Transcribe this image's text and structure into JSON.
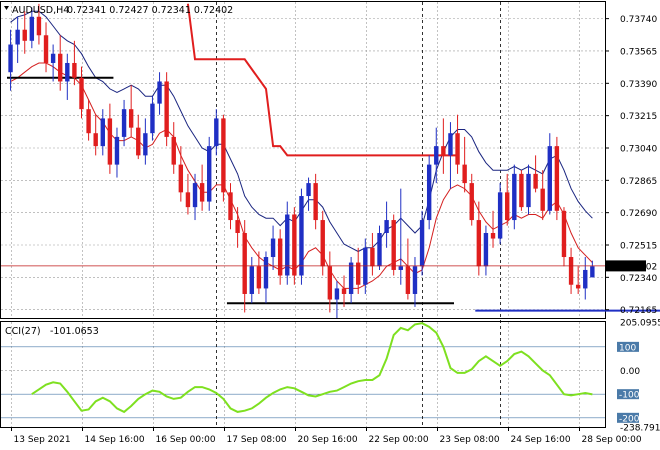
{
  "header": {
    "symbol": "AUDUSD,H4",
    "quote_values": "0.72341 0.72427 0.72341 0.72402"
  },
  "cci_header": {
    "name": "CCI(27)",
    "value": "-101.0653"
  },
  "colors": {
    "bull": "#1f2fc4",
    "bear": "#e01e1e",
    "upper_band": "#1a2580",
    "lower_band": "#d42020",
    "stop_line": "#e01e1e",
    "support": "#000000",
    "support_blue": "#1f2fc4",
    "cci_line": "#7ee020",
    "grid": "#9a9a9a",
    "price_tag_bg": "#000000",
    "price_tag_text": "#ffffff"
  },
  "chart_data": [
    {
      "type": "candlestick",
      "title": "AUDUSD,H4",
      "y_ticks": [
        "0.73740",
        "0.73565",
        "0.73390",
        "0.73215",
        "0.73040",
        "0.72865",
        "0.72690",
        "0.72515",
        "0.72340",
        "0.72165"
      ],
      "ylim": [
        0.7212,
        0.7383
      ],
      "current_price": "0.72402",
      "x_ticks": [
        "13 Sep 2021",
        "14 Sep 16:00",
        "16 Sep 00:00",
        "17 Sep 08:00",
        "20 Sep 16:00",
        "22 Sep 00:00",
        "23 Sep 08:00",
        "24 Sep 16:00",
        "28 Sep 00:00"
      ],
      "candles": [
        {
          "o": 0.7345,
          "h": 0.7368,
          "l": 0.7335,
          "c": 0.736
        },
        {
          "o": 0.736,
          "h": 0.7375,
          "l": 0.735,
          "c": 0.7368
        },
        {
          "o": 0.7368,
          "h": 0.7378,
          "l": 0.7355,
          "c": 0.7362
        },
        {
          "o": 0.7362,
          "h": 0.738,
          "l": 0.7358,
          "c": 0.7375
        },
        {
          "o": 0.7375,
          "h": 0.7382,
          "l": 0.736,
          "c": 0.7365
        },
        {
          "o": 0.7365,
          "h": 0.7372,
          "l": 0.7345,
          "c": 0.735
        },
        {
          "o": 0.735,
          "h": 0.736,
          "l": 0.734,
          "c": 0.7355
        },
        {
          "o": 0.7355,
          "h": 0.7365,
          "l": 0.7335,
          "c": 0.734
        },
        {
          "o": 0.734,
          "h": 0.7355,
          "l": 0.733,
          "c": 0.735
        },
        {
          "o": 0.735,
          "h": 0.7362,
          "l": 0.7338,
          "c": 0.7342
        },
        {
          "o": 0.7342,
          "h": 0.7348,
          "l": 0.732,
          "c": 0.7325
        },
        {
          "o": 0.7325,
          "h": 0.733,
          "l": 0.7308,
          "c": 0.7312
        },
        {
          "o": 0.7312,
          "h": 0.7322,
          "l": 0.73,
          "c": 0.7305
        },
        {
          "o": 0.7305,
          "h": 0.7325,
          "l": 0.73,
          "c": 0.732
        },
        {
          "o": 0.732,
          "h": 0.7328,
          "l": 0.729,
          "c": 0.7295
        },
        {
          "o": 0.7295,
          "h": 0.7315,
          "l": 0.7288,
          "c": 0.731
        },
        {
          "o": 0.731,
          "h": 0.733,
          "l": 0.7305,
          "c": 0.7325
        },
        {
          "o": 0.7325,
          "h": 0.7338,
          "l": 0.731,
          "c": 0.7315
        },
        {
          "o": 0.7315,
          "h": 0.7322,
          "l": 0.7298,
          "c": 0.73
        },
        {
          "o": 0.73,
          "h": 0.732,
          "l": 0.7295,
          "c": 0.7312
        },
        {
          "o": 0.7312,
          "h": 0.7332,
          "l": 0.7308,
          "c": 0.7328
        },
        {
          "o": 0.7328,
          "h": 0.7345,
          "l": 0.7322,
          "c": 0.734
        },
        {
          "o": 0.734,
          "h": 0.7345,
          "l": 0.7305,
          "c": 0.731
        },
        {
          "o": 0.731,
          "h": 0.7318,
          "l": 0.729,
          "c": 0.7295
        },
        {
          "o": 0.7295,
          "h": 0.7305,
          "l": 0.7275,
          "c": 0.728
        },
        {
          "o": 0.728,
          "h": 0.729,
          "l": 0.7268,
          "c": 0.7272
        },
        {
          "o": 0.7272,
          "h": 0.729,
          "l": 0.7265,
          "c": 0.7285
        },
        {
          "o": 0.7285,
          "h": 0.7295,
          "l": 0.727,
          "c": 0.7275
        },
        {
          "o": 0.7275,
          "h": 0.731,
          "l": 0.727,
          "c": 0.7305
        },
        {
          "o": 0.7305,
          "h": 0.7325,
          "l": 0.73,
          "c": 0.732
        },
        {
          "o": 0.732,
          "h": 0.7322,
          "l": 0.7275,
          "c": 0.728
        },
        {
          "o": 0.728,
          "h": 0.7285,
          "l": 0.726,
          "c": 0.7265
        },
        {
          "o": 0.7265,
          "h": 0.7272,
          "l": 0.725,
          "c": 0.7258
        },
        {
          "o": 0.7258,
          "h": 0.7265,
          "l": 0.7215,
          "c": 0.7225
        },
        {
          "o": 0.7225,
          "h": 0.7245,
          "l": 0.722,
          "c": 0.724
        },
        {
          "o": 0.724,
          "h": 0.7248,
          "l": 0.7225,
          "c": 0.7228
        },
        {
          "o": 0.7228,
          "h": 0.7248,
          "l": 0.722,
          "c": 0.7245
        },
        {
          "o": 0.7245,
          "h": 0.7262,
          "l": 0.7238,
          "c": 0.7255
        },
        {
          "o": 0.7255,
          "h": 0.726,
          "l": 0.723,
          "c": 0.7235
        },
        {
          "o": 0.7235,
          "h": 0.7275,
          "l": 0.723,
          "c": 0.7268
        },
        {
          "o": 0.7268,
          "h": 0.7272,
          "l": 0.723,
          "c": 0.7235
        },
        {
          "o": 0.7235,
          "h": 0.7282,
          "l": 0.723,
          "c": 0.7278
        },
        {
          "o": 0.7278,
          "h": 0.7288,
          "l": 0.727,
          "c": 0.7285
        },
        {
          "o": 0.7285,
          "h": 0.729,
          "l": 0.726,
          "c": 0.7265
        },
        {
          "o": 0.7265,
          "h": 0.727,
          "l": 0.7235,
          "c": 0.724
        },
        {
          "o": 0.724,
          "h": 0.7248,
          "l": 0.7215,
          "c": 0.7222
        },
        {
          "o": 0.7222,
          "h": 0.7232,
          "l": 0.7212,
          "c": 0.7228
        },
        {
          "o": 0.7228,
          "h": 0.7235,
          "l": 0.7218,
          "c": 0.7225
        },
        {
          "o": 0.7225,
          "h": 0.7245,
          "l": 0.722,
          "c": 0.7242
        },
        {
          "o": 0.7242,
          "h": 0.725,
          "l": 0.7225,
          "c": 0.723
        },
        {
          "o": 0.723,
          "h": 0.7255,
          "l": 0.7225,
          "c": 0.725
        },
        {
          "o": 0.725,
          "h": 0.7258,
          "l": 0.7235,
          "c": 0.724
        },
        {
          "o": 0.724,
          "h": 0.7262,
          "l": 0.7238,
          "c": 0.7258
        },
        {
          "o": 0.7258,
          "h": 0.7275,
          "l": 0.725,
          "c": 0.7265
        },
        {
          "o": 0.7265,
          "h": 0.7268,
          "l": 0.7235,
          "c": 0.7238
        },
        {
          "o": 0.7238,
          "h": 0.7282,
          "l": 0.723,
          "c": 0.724
        },
        {
          "o": 0.724,
          "h": 0.7255,
          "l": 0.7222,
          "c": 0.7225
        },
        {
          "o": 0.7225,
          "h": 0.7245,
          "l": 0.7218,
          "c": 0.724
        },
        {
          "o": 0.724,
          "h": 0.727,
          "l": 0.7235,
          "c": 0.7265
        },
        {
          "o": 0.7265,
          "h": 0.73,
          "l": 0.726,
          "c": 0.7295
        },
        {
          "o": 0.7295,
          "h": 0.7315,
          "l": 0.7285,
          "c": 0.7305
        },
        {
          "o": 0.7305,
          "h": 0.732,
          "l": 0.729,
          "c": 0.73
        },
        {
          "o": 0.73,
          "h": 0.7318,
          "l": 0.7282,
          "c": 0.7312
        },
        {
          "o": 0.7312,
          "h": 0.7322,
          "l": 0.729,
          "c": 0.7295
        },
        {
          "o": 0.7295,
          "h": 0.731,
          "l": 0.728,
          "c": 0.7285
        },
        {
          "o": 0.7285,
          "h": 0.729,
          "l": 0.7262,
          "c": 0.7265
        },
        {
          "o": 0.7265,
          "h": 0.7275,
          "l": 0.7235,
          "c": 0.724
        },
        {
          "o": 0.724,
          "h": 0.7262,
          "l": 0.7235,
          "c": 0.7258
        },
        {
          "o": 0.7258,
          "h": 0.727,
          "l": 0.725,
          "c": 0.7255
        },
        {
          "o": 0.7255,
          "h": 0.7285,
          "l": 0.7252,
          "c": 0.728
        },
        {
          "o": 0.728,
          "h": 0.729,
          "l": 0.7262,
          "c": 0.7265
        },
        {
          "o": 0.7265,
          "h": 0.7295,
          "l": 0.726,
          "c": 0.729
        },
        {
          "o": 0.729,
          "h": 0.7292,
          "l": 0.727,
          "c": 0.7272
        },
        {
          "o": 0.7272,
          "h": 0.7295,
          "l": 0.7268,
          "c": 0.729
        },
        {
          "o": 0.729,
          "h": 0.73,
          "l": 0.728,
          "c": 0.7282
        },
        {
          "o": 0.7282,
          "h": 0.7292,
          "l": 0.7265,
          "c": 0.727
        },
        {
          "o": 0.727,
          "h": 0.7312,
          "l": 0.7268,
          "c": 0.7305
        },
        {
          "o": 0.7305,
          "h": 0.731,
          "l": 0.7265,
          "c": 0.727
        },
        {
          "o": 0.727,
          "h": 0.7272,
          "l": 0.724,
          "c": 0.7245
        },
        {
          "o": 0.7245,
          "h": 0.725,
          "l": 0.7225,
          "c": 0.723
        },
        {
          "o": 0.723,
          "h": 0.724,
          "l": 0.7225,
          "c": 0.7228
        },
        {
          "o": 0.7228,
          "h": 0.7245,
          "l": 0.7222,
          "c": 0.7238
        },
        {
          "o": 0.7234,
          "h": 0.7243,
          "l": 0.7234,
          "c": 0.724
        }
      ],
      "upper_band": [
        0.7372,
        0.7375,
        0.7376,
        0.7378,
        0.7378,
        0.7375,
        0.737,
        0.7365,
        0.7362,
        0.736,
        0.7355,
        0.7348,
        0.7342,
        0.734,
        0.7336,
        0.7334,
        0.7336,
        0.7338,
        0.7336,
        0.7332,
        0.7332,
        0.7338,
        0.7338,
        0.7332,
        0.7324,
        0.7316,
        0.731,
        0.7304,
        0.7302,
        0.7306,
        0.7306,
        0.7298,
        0.729,
        0.7278,
        0.7272,
        0.7268,
        0.7266,
        0.7266,
        0.7262,
        0.7266,
        0.7264,
        0.727,
        0.7276,
        0.7276,
        0.7272,
        0.7264,
        0.7258,
        0.7252,
        0.725,
        0.7248,
        0.725,
        0.725,
        0.7254,
        0.726,
        0.7262,
        0.7266,
        0.7262,
        0.7258,
        0.7262,
        0.7276,
        0.7292,
        0.7302,
        0.731,
        0.7314,
        0.7314,
        0.731,
        0.7302,
        0.7296,
        0.7292,
        0.7292,
        0.7292,
        0.7294,
        0.7292,
        0.7294,
        0.7292,
        0.729,
        0.7298,
        0.73,
        0.7292,
        0.7282,
        0.7275,
        0.727,
        0.7266
      ],
      "lower_band": [
        0.734,
        0.7342,
        0.7345,
        0.7348,
        0.735,
        0.735,
        0.7348,
        0.7345,
        0.7343,
        0.7342,
        0.7338,
        0.733,
        0.7322,
        0.7318,
        0.7312,
        0.7308,
        0.7308,
        0.731,
        0.7308,
        0.7304,
        0.7306,
        0.7312,
        0.7314,
        0.731,
        0.73,
        0.7292,
        0.7286,
        0.728,
        0.728,
        0.7284,
        0.7284,
        0.7276,
        0.7268,
        0.7256,
        0.725,
        0.7245,
        0.7242,
        0.724,
        0.7238,
        0.724,
        0.7238,
        0.7242,
        0.7248,
        0.725,
        0.7246,
        0.7238,
        0.7232,
        0.7228,
        0.7228,
        0.7228,
        0.723,
        0.7232,
        0.7235,
        0.724,
        0.7242,
        0.7244,
        0.724,
        0.7236,
        0.7238,
        0.725,
        0.7266,
        0.7276,
        0.7282,
        0.7284,
        0.7282,
        0.7278,
        0.727,
        0.7264,
        0.726,
        0.7262,
        0.7264,
        0.7268,
        0.7266,
        0.7268,
        0.7268,
        0.7266,
        0.7272,
        0.7275,
        0.7268,
        0.7258,
        0.725,
        0.7246,
        0.7242
      ],
      "stop_line": [
        {
          "x": 0,
          "y": null
        },
        {
          "x": 25,
          "y": 0.7382
        },
        {
          "x": 26,
          "y": 0.7352
        },
        {
          "x": 33,
          "y": 0.7352
        },
        {
          "x": 36,
          "y": 0.7336
        },
        {
          "x": 37,
          "y": 0.7305
        },
        {
          "x": 38,
          "y": 0.7305
        },
        {
          "x": 39,
          "y": 0.73
        },
        {
          "x": 63,
          "y": 0.73
        }
      ],
      "support_lines": [
        {
          "from": 0,
          "to": 14,
          "y": 0.7342,
          "color": "black"
        },
        {
          "from": 31,
          "to": 62,
          "y": 0.722,
          "color": "black"
        },
        {
          "from": 66,
          "to": 92,
          "y": 0.7216,
          "color": "blue"
        }
      ]
    },
    {
      "type": "line",
      "title": "CCI(27) -101.0653",
      "y_ticks": [
        "205.0955",
        "100",
        "0.00",
        "-100",
        "-200",
        "-238.7918"
      ],
      "ylim": [
        -238.7918,
        205.0955
      ],
      "series": [
        {
          "values": [
            -100,
            -80,
            -60,
            -50,
            -55,
            -90,
            -130,
            -170,
            -165,
            -130,
            -115,
            -130,
            -160,
            -175,
            -150,
            -120,
            -100,
            -85,
            -90,
            -110,
            -120,
            -115,
            -90,
            -70,
            -70,
            -80,
            -95,
            -120,
            -160,
            -175,
            -170,
            -160,
            -140,
            -115,
            -95,
            -80,
            -70,
            -75,
            -90,
            -105,
            -110,
            -100,
            -90,
            -85,
            -70,
            -55,
            -45,
            -40,
            -40,
            -20,
            50,
            150,
            180,
            170,
            195,
            200,
            185,
            160,
            100,
            10,
            -10,
            -10,
            5,
            40,
            60,
            40,
            20,
            40,
            70,
            80,
            60,
            30,
            0,
            -20,
            -60,
            -100,
            -105,
            -100,
            -95,
            -101
          ]
        }
      ]
    }
  ]
}
